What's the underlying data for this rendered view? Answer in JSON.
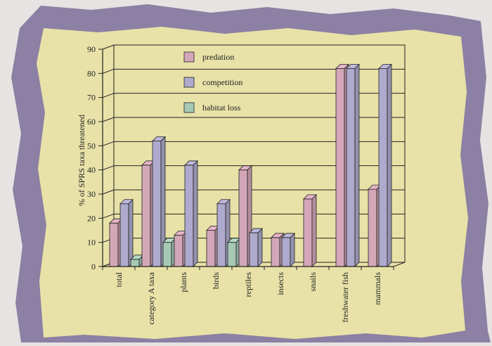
{
  "chart_data": {
    "type": "bar",
    "ylabel": "% of SPRS taxa threatened",
    "ylim": [
      0,
      90
    ],
    "yticks": [
      "0",
      "10",
      "20",
      "30",
      "40",
      "50",
      "60",
      "70",
      "80",
      "90"
    ],
    "categories": [
      "total",
      "category A taxa",
      "plants",
      "birds",
      "reptiles",
      "insects",
      "snails",
      "freshwater fish",
      "mammals"
    ],
    "series": [
      {
        "name": "predation",
        "color": "#d3a7b8",
        "values": [
          18,
          42,
          13,
          15,
          40,
          12,
          28,
          82,
          32
        ]
      },
      {
        "name": "competition",
        "color": "#aeaacd",
        "values": [
          26,
          52,
          42,
          26,
          14,
          12,
          null,
          82,
          82
        ]
      },
      {
        "name": "habitat loss",
        "color": "#a6c9b6",
        "values": [
          3,
          10,
          null,
          10,
          null,
          null,
          null,
          null,
          null
        ]
      }
    ],
    "legend_position": "top-left inside plot",
    "grid": true,
    "style": "3d"
  },
  "colors": {
    "frame": "#8c80a4",
    "panel": "#e8e2a8",
    "background": "#e6e4e2"
  }
}
